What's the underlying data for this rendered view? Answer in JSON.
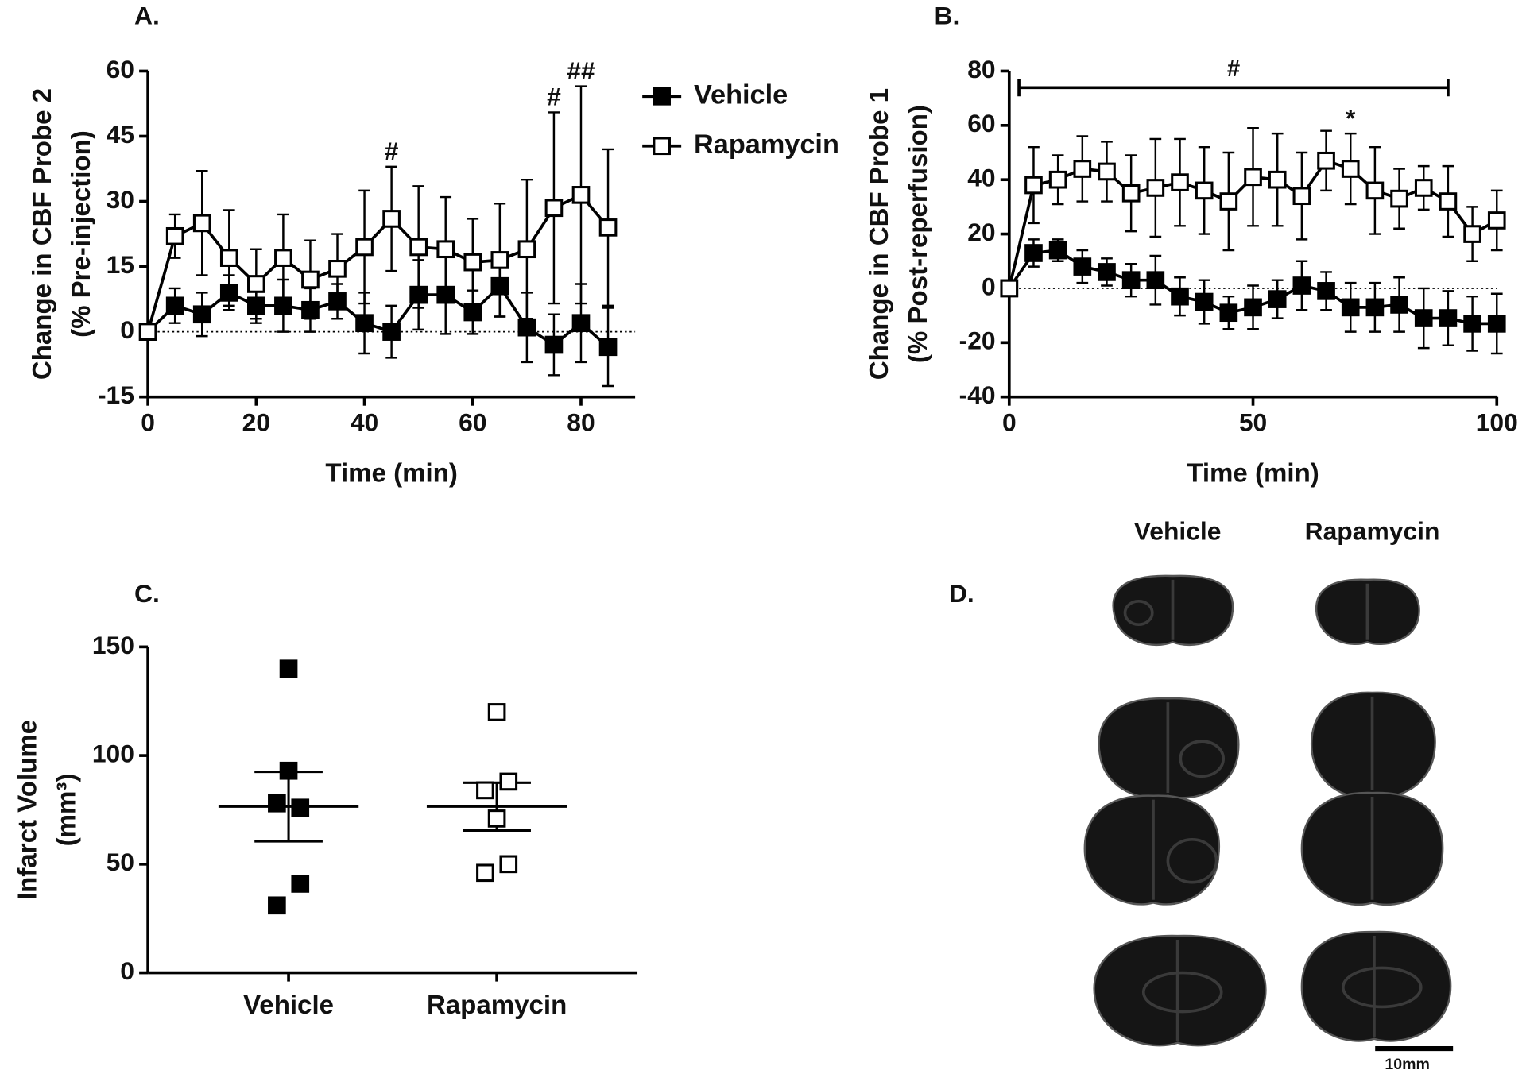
{
  "chart_data": [
    {
      "type": "line",
      "title": "A.",
      "x_label": "Time  (min)",
      "y_label": [
        "Change in CBF Probe 2",
        "(% Pre-injection)"
      ],
      "xlim": [
        0,
        90
      ],
      "xticks": [
        0,
        20,
        40,
        60,
        80
      ],
      "ylim": [
        -15,
        60
      ],
      "yticks": [
        -15,
        0,
        15,
        30,
        45,
        60
      ],
      "hline": 0,
      "legend": "right",
      "x": [
        0,
        5,
        10,
        15,
        20,
        25,
        30,
        35,
        40,
        45,
        50,
        55,
        60,
        65,
        70,
        75,
        80,
        85
      ],
      "series": [
        {
          "name": "Vehicle",
          "color": "#000000",
          "fill": "#000000",
          "values": [
            0,
            6,
            4,
            9,
            6,
            6,
            5,
            7,
            2,
            0,
            8.5,
            8.5,
            4.5,
            10.5,
            1,
            -3,
            2,
            -3.5
          ],
          "errors": [
            0,
            4,
            5,
            4,
            4,
            6,
            5,
            4,
            7,
            6,
            8,
            9,
            5,
            7,
            8,
            7,
            9,
            9
          ]
        },
        {
          "name": "Rapamycin",
          "color": "#000000",
          "fill": "#ffffff",
          "values": [
            0,
            22,
            25,
            17,
            11,
            17,
            12,
            14.5,
            19.5,
            26,
            19.5,
            19,
            16,
            16.5,
            19,
            28.5,
            31.5,
            24
          ],
          "errors": [
            0,
            5,
            12,
            11,
            8,
            10,
            9,
            8,
            13,
            12,
            14,
            12,
            10,
            13,
            16,
            22,
            25,
            18
          ]
        }
      ],
      "annotations": [
        {
          "text": "#",
          "x": 45
        },
        {
          "text": "#",
          "x": 75
        },
        {
          "text": "##",
          "x": 80
        }
      ]
    },
    {
      "type": "line",
      "title": "B.",
      "x_label": "Time  (min)",
      "y_label": [
        "Change in CBF Probe 1",
        "(% Post-reperfusion)"
      ],
      "xlim": [
        0,
        100
      ],
      "xticks": [
        0,
        50,
        100
      ],
      "ylim": [
        -40,
        80
      ],
      "yticks": [
        -40,
        -20,
        0,
        20,
        40,
        60,
        80
      ],
      "hline": 0,
      "x": [
        0,
        5,
        10,
        15,
        20,
        25,
        30,
        35,
        40,
        45,
        50,
        55,
        60,
        65,
        70,
        75,
        80,
        85,
        90,
        95,
        100
      ],
      "series": [
        {
          "name": "Vehicle",
          "color": "#000000",
          "fill": "#000000",
          "values": [
            0,
            13,
            14,
            8,
            6,
            3,
            3,
            -3,
            -5,
            -9,
            -7,
            -4,
            1,
            -1,
            -7,
            -7,
            -6,
            -11,
            -11,
            -13,
            -13
          ],
          "errors": [
            0,
            5,
            4,
            6,
            5,
            6,
            9,
            7,
            8,
            6,
            8,
            7,
            9,
            7,
            9,
            9,
            10,
            11,
            10,
            10,
            11
          ]
        },
        {
          "name": "Rapamycin",
          "color": "#000000",
          "fill": "#ffffff",
          "values": [
            0,
            38,
            40,
            44,
            43,
            35,
            37,
            39,
            36,
            32,
            41,
            40,
            34,
            47,
            44,
            36,
            33,
            37,
            32,
            20,
            25
          ],
          "errors": [
            0,
            14,
            9,
            12,
            11,
            14,
            18,
            16,
            16,
            18,
            18,
            17,
            16,
            11,
            13,
            16,
            11,
            8,
            13,
            10,
            11
          ]
        }
      ],
      "annotations": [
        {
          "text": "*",
          "x": 70
        }
      ],
      "bracket": {
        "text": "#",
        "x": [
          2,
          90
        ]
      }
    },
    {
      "type": "dot",
      "title": "C.",
      "y_label": [
        "Infarct Volume",
        "(mm³)"
      ],
      "ylim": [
        0,
        150
      ],
      "yticks": [
        0,
        50,
        100,
        150
      ],
      "categories": [
        "Vehicle",
        "Rapamycin"
      ],
      "values": [
        [
          140,
          93,
          78,
          76,
          41,
          31
        ],
        [
          120,
          88,
          84,
          71,
          50,
          46
        ]
      ],
      "means": [
        76.5,
        76.5
      ],
      "errors": [
        16,
        11
      ],
      "fills": [
        "#000000",
        "#ffffff"
      ],
      "color": "#000000"
    }
  ],
  "panel_d": {
    "title": "D.",
    "columns": [
      "Vehicle",
      "Rapamycin"
    ],
    "scale_bar": "10mm"
  }
}
